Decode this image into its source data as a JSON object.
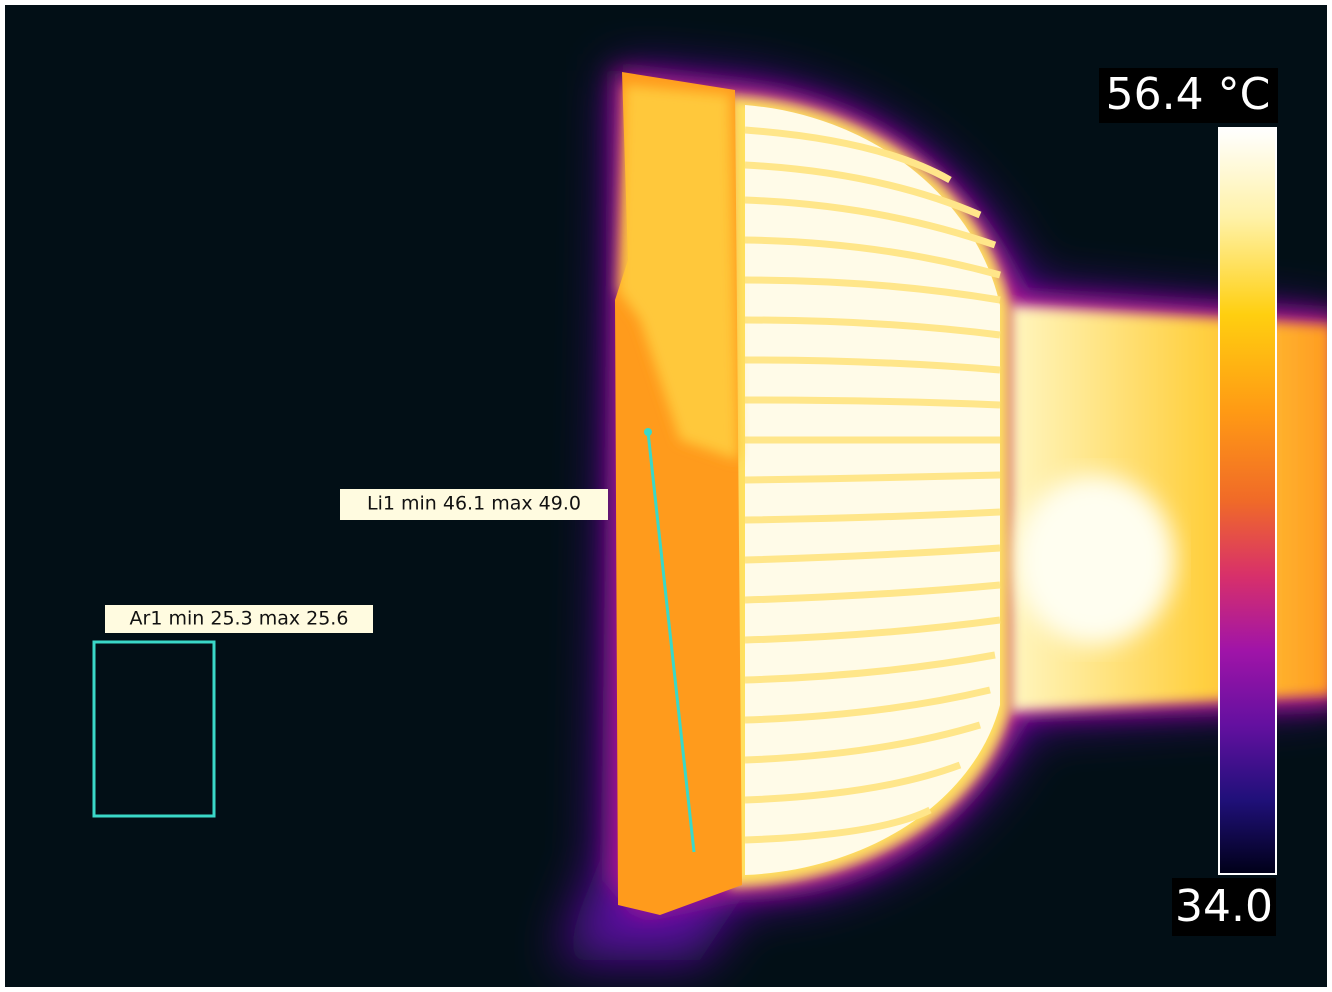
{
  "scale": {
    "max_label": "56.4 °C",
    "min_label": "34.0"
  },
  "measurements": [
    {
      "label": "Li1 min 46.1 max 49.0"
    },
    {
      "label": "Ar1 min 25.3 max 25.6"
    }
  ]
}
